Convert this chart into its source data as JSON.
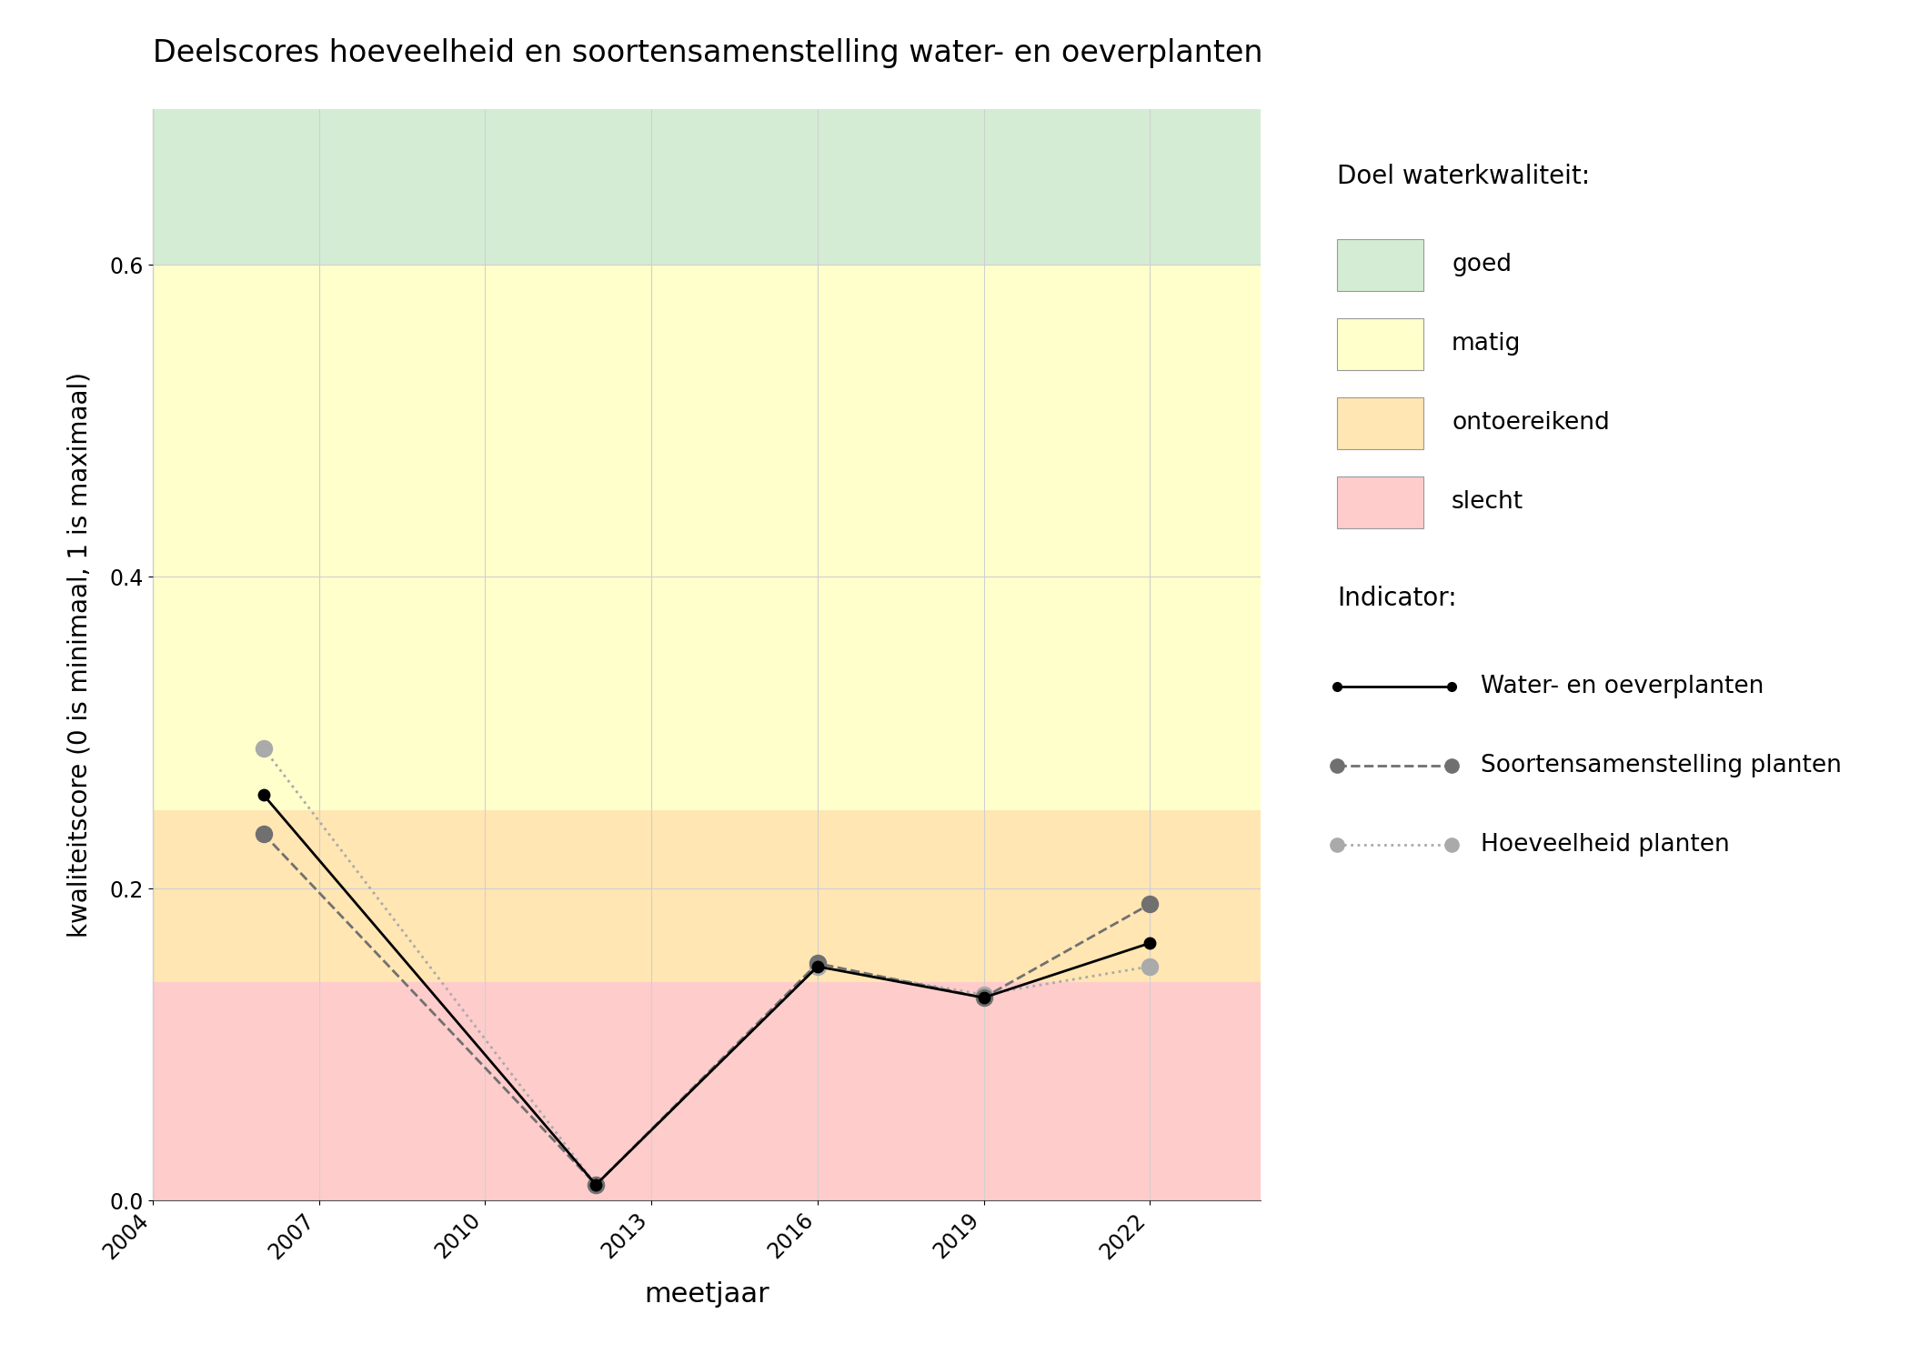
{
  "title": "Deelscores hoeveelheid en soortensamenstelling water- en oeverplanten",
  "xlabel": "meetjaar",
  "ylabel": "kwaliteitscore (0 is minimaal, 1 is maximaal)",
  "xlim": [
    2004,
    2024
  ],
  "ylim": [
    0.0,
    0.7
  ],
  "xticks": [
    2004,
    2007,
    2010,
    2013,
    2016,
    2019,
    2022
  ],
  "yticks": [
    0.0,
    0.2,
    0.4,
    0.6
  ],
  "bg_colors": [
    {
      "name": "goed",
      "ymin": 0.6,
      "ymax": 0.7,
      "color": "#d5ecd4"
    },
    {
      "name": "matig",
      "ymin": 0.25,
      "ymax": 0.6,
      "color": "#ffffcc"
    },
    {
      "name": "ontoereikend",
      "ymin": 0.14,
      "ymax": 0.25,
      "color": "#ffe6b3"
    },
    {
      "name": "slecht",
      "ymin": 0.0,
      "ymax": 0.14,
      "color": "#ffcccc"
    }
  ],
  "series": {
    "water_oeverplanten": {
      "years": [
        2006,
        2012,
        2016,
        2019,
        2022
      ],
      "values": [
        0.26,
        0.01,
        0.15,
        0.13,
        0.165
      ],
      "color": "#000000",
      "linestyle": "solid",
      "linewidth": 2.0,
      "marker": "o",
      "markersize": 9,
      "label": "Water- en oeverplanten",
      "zorder": 5
    },
    "soortensamenstelling": {
      "years": [
        2006,
        2012,
        2016,
        2019,
        2022
      ],
      "values": [
        0.235,
        0.01,
        0.152,
        0.13,
        0.19
      ],
      "color": "#707070",
      "linestyle": "dashed",
      "linewidth": 2.0,
      "marker": "o",
      "markersize": 13,
      "label": "Soortensamenstelling planten",
      "zorder": 4
    },
    "hoeveelheid": {
      "years": [
        2006,
        2012,
        2016,
        2019,
        2022
      ],
      "values": [
        0.29,
        0.01,
        0.15,
        0.132,
        0.15
      ],
      "color": "#aaaaaa",
      "linestyle": "dotted",
      "linewidth": 2.0,
      "marker": "o",
      "markersize": 13,
      "label": "Hoeveelheid planten",
      "zorder": 3
    }
  },
  "legend_doel_title": "Doel waterkwaliteit:",
  "legend_indicator_title": "Indicator:",
  "legend_colors": {
    "goed": "#d5ecd4",
    "matig": "#ffffcc",
    "ontoereikend": "#ffe6b3",
    "slecht": "#ffcccc"
  },
  "background_color": "#ffffff",
  "grid_color": "#d0d0d0"
}
